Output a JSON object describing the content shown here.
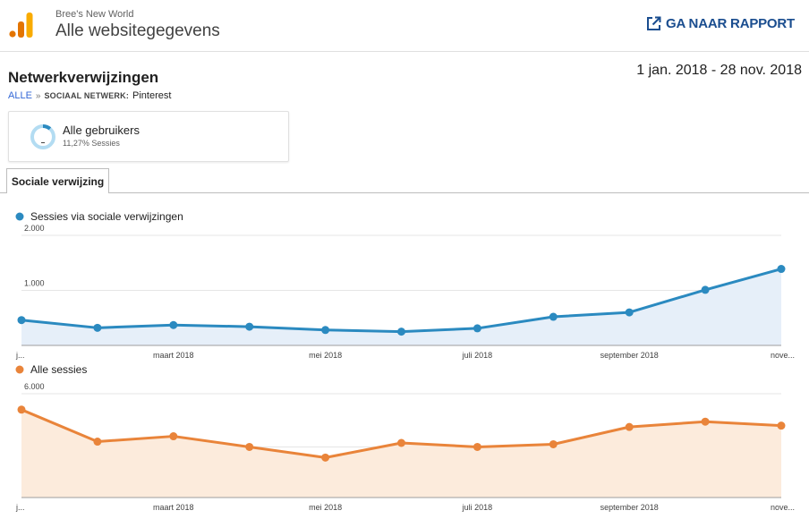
{
  "header": {
    "account": "Bree's New World",
    "view": "Alle websitegegevens",
    "report_link": "GA NAAR RAPPORT",
    "report_icon": "open-in-new-icon",
    "logo_icon": "analytics-logo-icon"
  },
  "page": {
    "title": "Netwerkverwijzingen",
    "date_range": "1 jan. 2018 - 28 nov. 2018",
    "breadcrumb": {
      "root": "ALLE",
      "separator": "»",
      "key": "SOCIAAL NETWERK:",
      "value": "Pinterest"
    }
  },
  "segment": {
    "name": "Alle gebruikers",
    "stat": "11,27% Sessies",
    "share": 0.1127
  },
  "tabs": [
    {
      "label": "Sociale verwijzing",
      "active": true
    }
  ],
  "colors": {
    "blue": "#2b8ac0",
    "blue_fill": "#e6eff9",
    "orange": "#e9843a",
    "orange_fill": "#fcebdc",
    "link": "#1a4d8f"
  },
  "chart_data": [
    {
      "type": "area",
      "series": [
        {
          "name": "Sessies via sociale verwijzingen",
          "color": "#2b8ac0"
        }
      ],
      "values": [
        460,
        320,
        370,
        340,
        280,
        250,
        310,
        520,
        600,
        1010,
        1390
      ],
      "yticks": [
        {
          "v": 1000,
          "label": "1.000"
        },
        {
          "v": 2000,
          "label": "2.000"
        }
      ],
      "ylim": [
        0,
        2000
      ],
      "xticks": [
        {
          "i": 0,
          "label": "j..."
        },
        {
          "i": 2,
          "label": "maart 2018"
        },
        {
          "i": 4,
          "label": "mei 2018"
        },
        {
          "i": 6,
          "label": "juli 2018"
        },
        {
          "i": 8,
          "label": "september 2018"
        },
        {
          "i": 10,
          "label": "nove..."
        }
      ],
      "grid": true
    },
    {
      "type": "area",
      "series": [
        {
          "name": "Alle sessies",
          "color": "#e9843a"
        }
      ],
      "values": [
        5400,
        4200,
        4400,
        4000,
        3600,
        4150,
        4000,
        4100,
        4750,
        4950,
        4800
      ],
      "yticks": [
        {
          "v": 4000,
          "label": "4.000"
        },
        {
          "v": 6000,
          "label": "6.000"
        }
      ],
      "ylim": [
        2100,
        6200
      ],
      "xticks": [
        {
          "i": 0,
          "label": "j..."
        },
        {
          "i": 2,
          "label": "maart 2018"
        },
        {
          "i": 4,
          "label": "mei 2018"
        },
        {
          "i": 6,
          "label": "juli 2018"
        },
        {
          "i": 8,
          "label": "september 2018"
        },
        {
          "i": 10,
          "label": "nove..."
        }
      ],
      "grid": true
    }
  ]
}
